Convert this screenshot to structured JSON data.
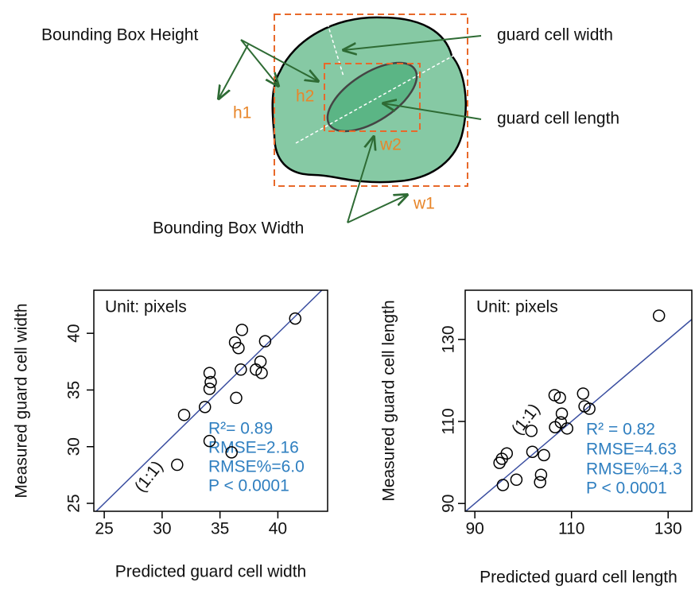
{
  "diagram": {
    "labels": {
      "bbox_height": "Bounding Box Height",
      "gc_width": "guard cell width",
      "gc_length": "guard cell length",
      "h1": "h1",
      "h2": "h2",
      "w1": "w1",
      "w2": "w2",
      "bbox_width": "Bounding Box Width"
    }
  },
  "chart_data": [
    {
      "type": "scatter",
      "x_label": "Predicted guard cell width",
      "y_label": "Measured guard cell width",
      "annotations": [
        "Unit: pixels",
        "R²= 0.89",
        "RMSE=2.16",
        "RMSE%=6.0",
        "P < 0.0001",
        "(1:1)"
      ],
      "color": "#000000",
      "reference_line_color": "#3a4ea0",
      "stats_color": "#2f7fc0",
      "x": [
        36.9,
        36.3,
        36.6,
        38.9,
        38.5,
        36.8,
        38.1,
        38.6,
        34.1,
        34.2,
        34.1,
        36.4,
        33.7,
        31.9,
        34.1,
        36.0,
        31.3,
        41.5
      ],
      "y": [
        40.3,
        39.2,
        38.7,
        39.3,
        37.5,
        36.8,
        36.8,
        36.5,
        36.5,
        35.7,
        35.1,
        34.3,
        33.5,
        32.8,
        30.5,
        29.5,
        28.4,
        41.3
      ],
      "xlim": [
        24.1,
        44.3
      ],
      "ylim": [
        24.3,
        43.8
      ],
      "xticks": [
        25,
        30,
        35,
        40
      ],
      "yticks": [
        25,
        30,
        35,
        40
      ]
    },
    {
      "type": "scatter",
      "x_label": "Predicted guard cell length",
      "y_label": "Measured guard cell length",
      "annotations": [
        "Unit: pixels",
        "R² = 0.82",
        "RMSE=4.63",
        "RMSE%=4.3",
        "P < 0.0001",
        "(1:1)"
      ],
      "color": "#000000",
      "reference_line_color": "#3a4ea0",
      "stats_color": "#2f7fc0",
      "x": [
        128.1,
        106.5,
        107.6,
        112.4,
        112.7,
        113.7,
        108.0,
        107.8,
        106.6,
        109.1,
        101.7,
        104.3,
        101.9,
        96.6,
        95.6,
        95.1,
        103.7,
        103.5,
        98.6,
        95.8
      ],
      "y": [
        135.8,
        116.4,
        115.8,
        116.8,
        113.7,
        113.1,
        111.9,
        109.8,
        108.6,
        108.3,
        107.7,
        101.8,
        102.6,
        102.2,
        100.9,
        99.9,
        97.0,
        95.2,
        95.8,
        94.5
      ],
      "xlim": [
        88.0,
        134.9
      ],
      "ylim": [
        88.1,
        142.0
      ],
      "xticks": [
        90,
        110,
        130
      ],
      "yticks": [
        90,
        110,
        130
      ]
    }
  ]
}
